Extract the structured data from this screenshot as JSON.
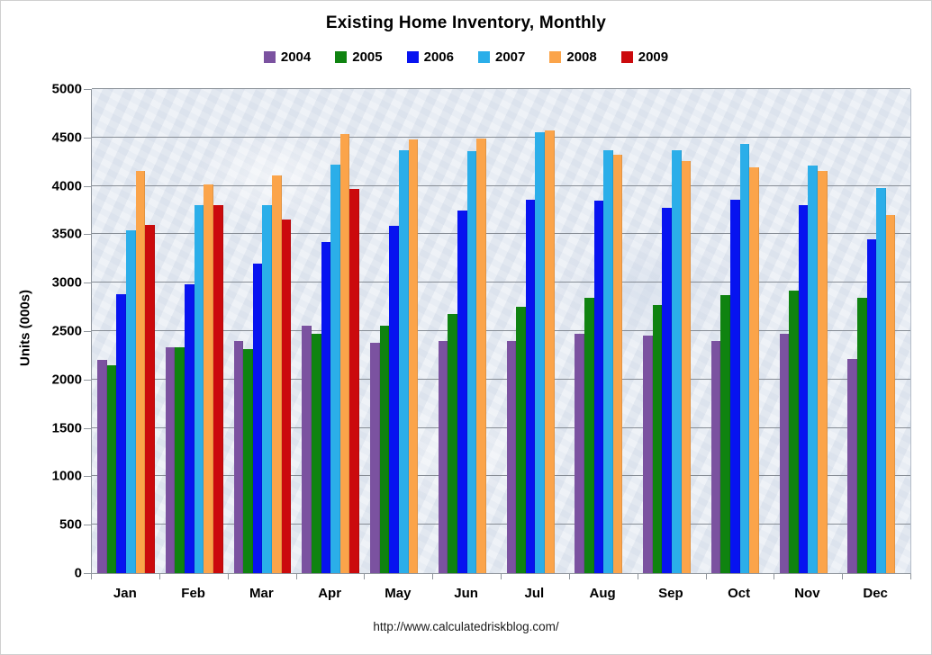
{
  "footer": {
    "url": "http://www.calculatedriskblog.com/"
  },
  "chart_data": {
    "type": "bar",
    "title": "Existing Home Inventory, Monthly",
    "xlabel": "",
    "ylabel": "Units (000s)",
    "ylim": [
      0,
      5000
    ],
    "ytick_step": 500,
    "ytick_labels": [
      "0",
      "500",
      "1000",
      "1500",
      "2000",
      "2500",
      "3000",
      "3500",
      "4000",
      "4500",
      "5000"
    ],
    "grid": true,
    "legend_position": "top",
    "categories": [
      "Jan",
      "Feb",
      "Mar",
      "Apr",
      "May",
      "Jun",
      "Jul",
      "Aug",
      "Sep",
      "Oct",
      "Nov",
      "Dec"
    ],
    "series": [
      {
        "name": "2004",
        "color": "#7B52A0",
        "values": [
          2200,
          2330,
          2400,
          2560,
          2380,
          2400,
          2400,
          2470,
          2450,
          2400,
          2470,
          2214
        ]
      },
      {
        "name": "2005",
        "color": "#0F8310",
        "values": [
          2146,
          2330,
          2310,
          2470,
          2560,
          2680,
          2750,
          2840,
          2770,
          2870,
          2920,
          2846
        ]
      },
      {
        "name": "2006",
        "color": "#0713F0",
        "values": [
          2885,
          2985,
          3198,
          3417,
          3591,
          3742,
          3861,
          3845,
          3772,
          3856,
          3801,
          3450
        ]
      },
      {
        "name": "2007",
        "color": "#2BAEE9",
        "values": [
          3537,
          3801,
          3800,
          4216,
          4371,
          4362,
          4558,
          4372,
          4371,
          4432,
          4211,
          3974
        ]
      },
      {
        "name": "2008",
        "color": "#FBA44A",
        "values": [
          4156,
          4014,
          4109,
          4538,
          4482,
          4489,
          4575,
          4321,
          4255,
          4188,
          4155,
          3700
        ]
      },
      {
        "name": "2009",
        "color": "#CB0A0D",
        "values": [
          3600,
          3798,
          3650,
          3970,
          null,
          null,
          null,
          null,
          null,
          null,
          null,
          null
        ]
      }
    ]
  }
}
